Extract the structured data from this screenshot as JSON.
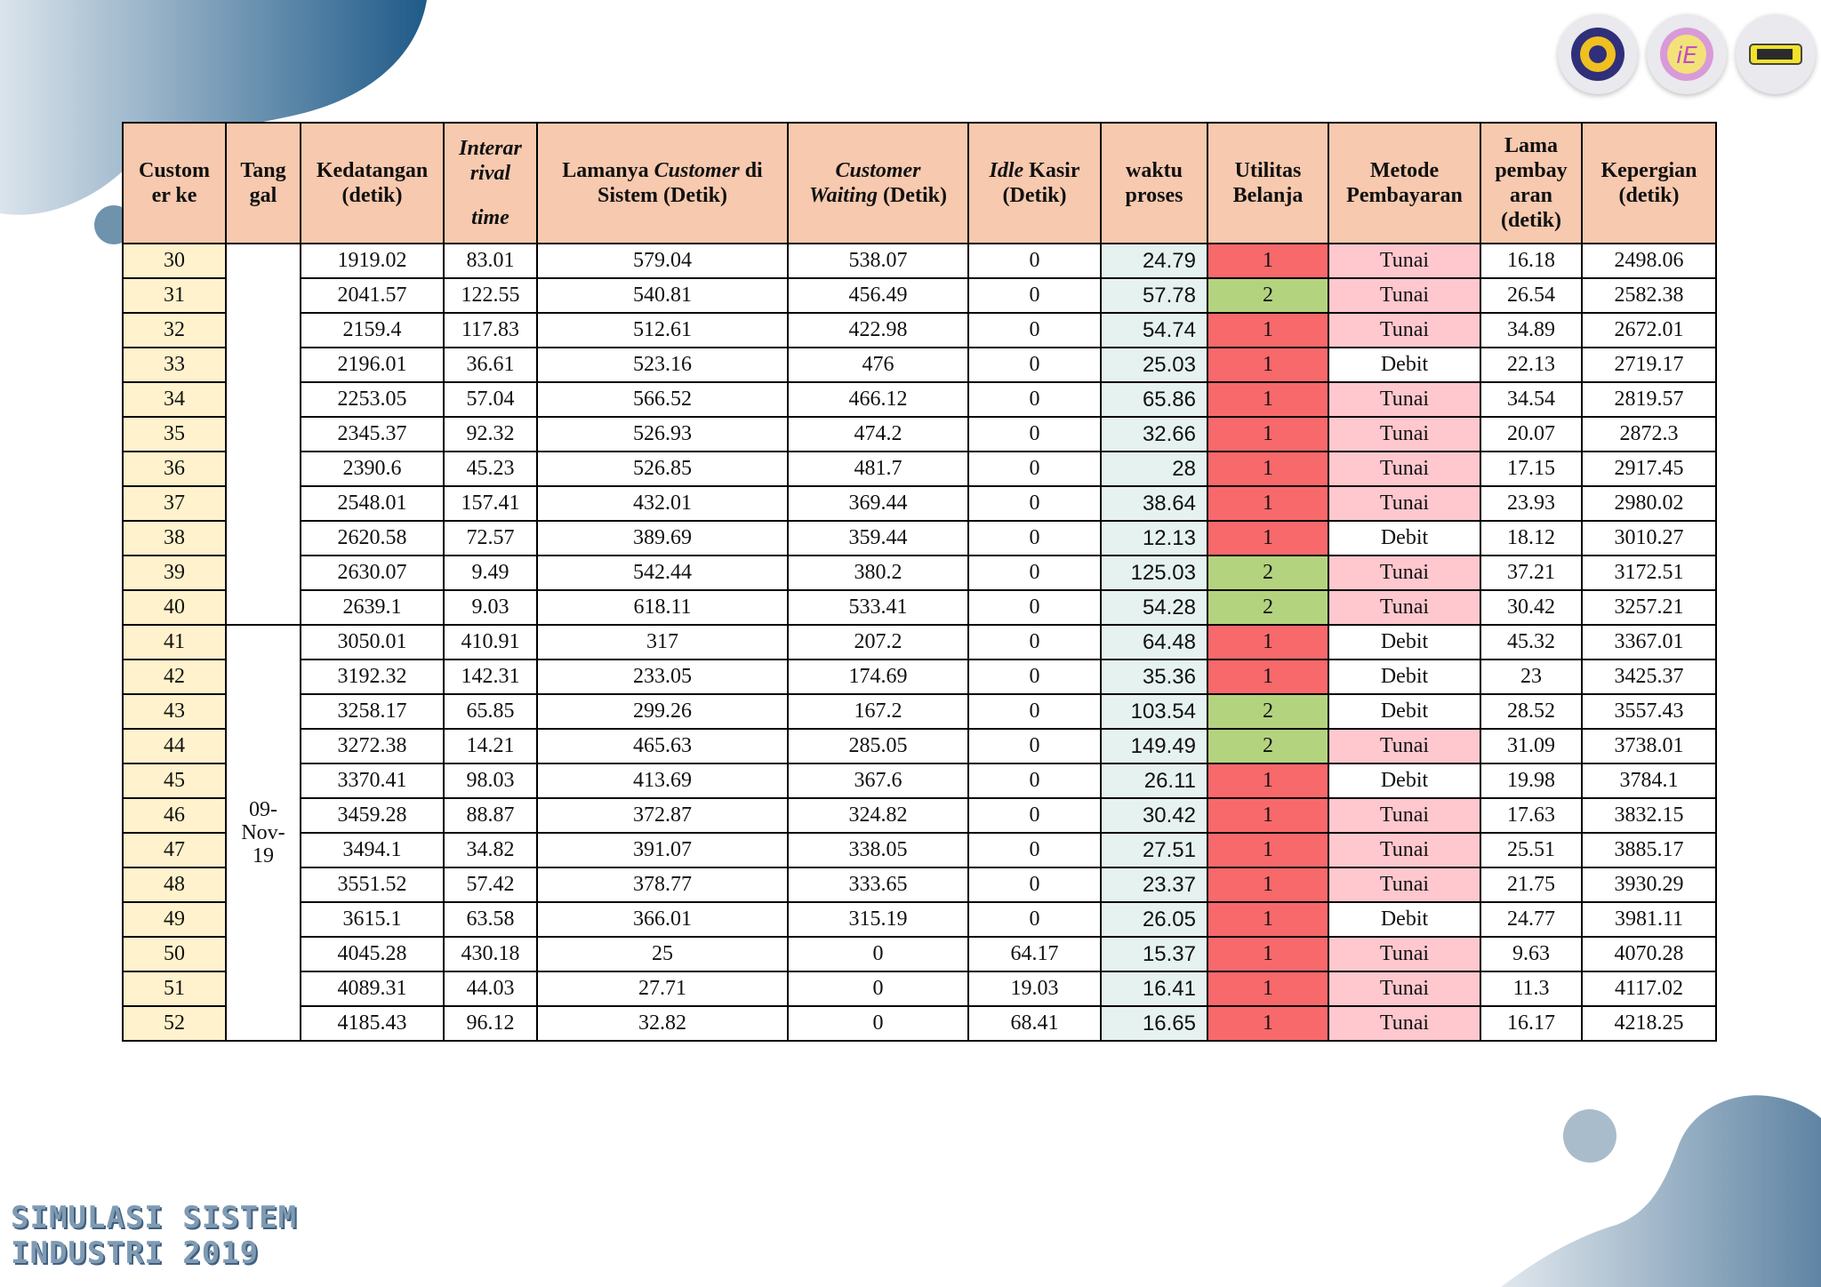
{
  "footer": {
    "line1": "SIMULASI SISTEM",
    "line2": "INDUSTRI 2019"
  },
  "logos": [
    "its-gear-logo",
    "ie-logo",
    "sti-logo"
  ],
  "colors": {
    "header_bg": "#f7c9ae",
    "id_bg": "#fff2cc",
    "util_1": "#f8696b",
    "util_2": "#b4d37f",
    "tunai_bg": "#ffc7ce",
    "blob": "#1f5a88"
  },
  "table": {
    "headers": {
      "customer_ke": "Custom er ke",
      "tanggal": "Tang gal",
      "kedatangan": "Kedatangan (detik)",
      "interarrival_a": "Interar rival",
      "interarrival_b": "time",
      "lamanya_a": "Lamanya ",
      "lamanya_b": "Customer",
      "lamanya_c": " di Sistem (Detik)",
      "waiting_a": "Customer",
      "waiting_b": "Waiting",
      "waiting_c": " (Detik)",
      "idle_a": "Idle",
      "idle_b": " Kasir (Detik)",
      "waktu_proses": "waktu proses",
      "utilitas": "Utilitas Belanja",
      "metode": "Metode Pembayaran",
      "lama_bayar": "Lama pembay aran (detik)",
      "kepergian": "Kepergian (detik)"
    },
    "tanggal_group2": "09- Nov- 19",
    "rows": [
      [
        "30",
        "1919.02",
        "83.01",
        "579.04",
        "538.07",
        "0",
        "24.79",
        "1",
        "Tunai",
        "16.18",
        "2498.06"
      ],
      [
        "31",
        "2041.57",
        "122.55",
        "540.81",
        "456.49",
        "0",
        "57.78",
        "2",
        "Tunai",
        "26.54",
        "2582.38"
      ],
      [
        "32",
        "2159.4",
        "117.83",
        "512.61",
        "422.98",
        "0",
        "54.74",
        "1",
        "Tunai",
        "34.89",
        "2672.01"
      ],
      [
        "33",
        "2196.01",
        "36.61",
        "523.16",
        "476",
        "0",
        "25.03",
        "1",
        "Debit",
        "22.13",
        "2719.17"
      ],
      [
        "34",
        "2253.05",
        "57.04",
        "566.52",
        "466.12",
        "0",
        "65.86",
        "1",
        "Tunai",
        "34.54",
        "2819.57"
      ],
      [
        "35",
        "2345.37",
        "92.32",
        "526.93",
        "474.2",
        "0",
        "32.66",
        "1",
        "Tunai",
        "20.07",
        "2872.3"
      ],
      [
        "36",
        "2390.6",
        "45.23",
        "526.85",
        "481.7",
        "0",
        "28",
        "1",
        "Tunai",
        "17.15",
        "2917.45"
      ],
      [
        "37",
        "2548.01",
        "157.41",
        "432.01",
        "369.44",
        "0",
        "38.64",
        "1",
        "Tunai",
        "23.93",
        "2980.02"
      ],
      [
        "38",
        "2620.58",
        "72.57",
        "389.69",
        "359.44",
        "0",
        "12.13",
        "1",
        "Debit",
        "18.12",
        "3010.27"
      ],
      [
        "39",
        "2630.07",
        "9.49",
        "542.44",
        "380.2",
        "0",
        "125.03",
        "2",
        "Tunai",
        "37.21",
        "3172.51"
      ],
      [
        "40",
        "2639.1",
        "9.03",
        "618.11",
        "533.41",
        "0",
        "54.28",
        "2",
        "Tunai",
        "30.42",
        "3257.21"
      ],
      [
        "41",
        "3050.01",
        "410.91",
        "317",
        "207.2",
        "0",
        "64.48",
        "1",
        "Debit",
        "45.32",
        "3367.01"
      ],
      [
        "42",
        "3192.32",
        "142.31",
        "233.05",
        "174.69",
        "0",
        "35.36",
        "1",
        "Debit",
        "23",
        "3425.37"
      ],
      [
        "43",
        "3258.17",
        "65.85",
        "299.26",
        "167.2",
        "0",
        "103.54",
        "2",
        "Debit",
        "28.52",
        "3557.43"
      ],
      [
        "44",
        "3272.38",
        "14.21",
        "465.63",
        "285.05",
        "0",
        "149.49",
        "2",
        "Tunai",
        "31.09",
        "3738.01"
      ],
      [
        "45",
        "3370.41",
        "98.03",
        "413.69",
        "367.6",
        "0",
        "26.11",
        "1",
        "Debit",
        "19.98",
        "3784.1"
      ],
      [
        "46",
        "3459.28",
        "88.87",
        "372.87",
        "324.82",
        "0",
        "30.42",
        "1",
        "Tunai",
        "17.63",
        "3832.15"
      ],
      [
        "47",
        "3494.1",
        "34.82",
        "391.07",
        "338.05",
        "0",
        "27.51",
        "1",
        "Tunai",
        "25.51",
        "3885.17"
      ],
      [
        "48",
        "3551.52",
        "57.42",
        "378.77",
        "333.65",
        "0",
        "23.37",
        "1",
        "Tunai",
        "21.75",
        "3930.29"
      ],
      [
        "49",
        "3615.1",
        "63.58",
        "366.01",
        "315.19",
        "0",
        "26.05",
        "1",
        "Debit",
        "24.77",
        "3981.11"
      ],
      [
        "50",
        "4045.28",
        "430.18",
        "25",
        "0",
        "64.17",
        "15.37",
        "1",
        "Tunai",
        "9.63",
        "4070.28"
      ],
      [
        "51",
        "4089.31",
        "44.03",
        "27.71",
        "0",
        "19.03",
        "16.41",
        "1",
        "Tunai",
        "11.3",
        "4117.02"
      ],
      [
        "52",
        "4185.43",
        "96.12",
        "32.82",
        "0",
        "68.41",
        "16.65",
        "1",
        "Tunai",
        "16.17",
        "4218.25"
      ]
    ]
  }
}
